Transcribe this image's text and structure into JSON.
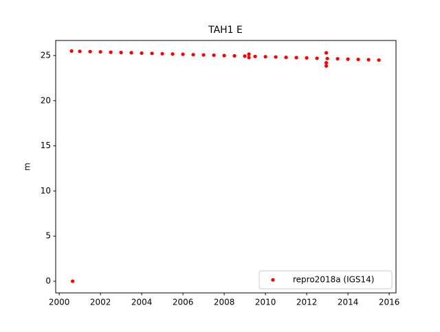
{
  "chart_data": {
    "type": "scatter",
    "title": "TAH1 E",
    "ylabel": "m",
    "xlim": [
      1999.83,
      2016.33
    ],
    "ylim": [
      -1.29,
      26.67
    ],
    "xticks": [
      2000,
      2002,
      2004,
      2006,
      2008,
      2010,
      2012,
      2014,
      2016
    ],
    "yticks": [
      0,
      5,
      10,
      15,
      20,
      25
    ],
    "legend": "lower right",
    "grid": false,
    "series": [
      {
        "name": "repro2018a (IGS14)",
        "color": "#ff0000",
        "x": [
          2000.65,
          2000.6,
          2001.0,
          2001.5,
          2002.0,
          2002.5,
          2003.0,
          2003.5,
          2004.0,
          2004.5,
          2005.0,
          2005.5,
          2006.0,
          2006.5,
          2007.0,
          2007.5,
          2008.0,
          2008.5,
          2009.0,
          2009.2,
          2009.2,
          2009.5,
          2010.0,
          2010.5,
          2011.0,
          2011.5,
          2012.0,
          2012.5,
          2012.95,
          2012.95,
          2012.95,
          2013.0,
          2013.5,
          2014.0,
          2014.5,
          2015.0,
          2015.5
        ],
        "values": [
          0,
          25.5,
          25.47,
          25.44,
          25.41,
          25.37,
          25.34,
          25.31,
          25.27,
          25.24,
          25.2,
          25.17,
          25.14,
          25.1,
          25.07,
          25.04,
          25.0,
          24.97,
          24.94,
          25.15,
          24.78,
          24.9,
          24.87,
          24.84,
          24.8,
          24.77,
          24.74,
          24.7,
          25.3,
          23.85,
          24.2,
          24.67,
          24.64,
          24.6,
          24.57,
          24.54,
          24.5
        ]
      }
    ]
  }
}
